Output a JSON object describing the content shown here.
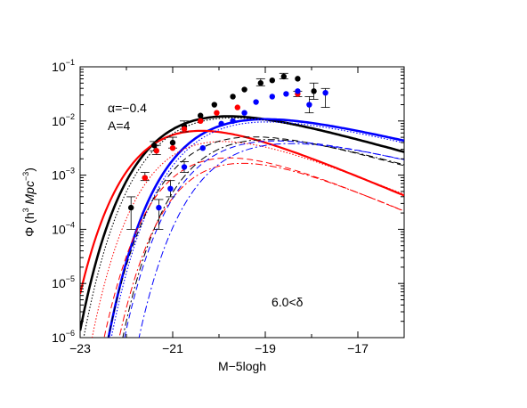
{
  "chart_data": {
    "type": "scatter",
    "xlabel": "M−5logh",
    "ylabel": {
      "main": "Φ (h",
      "sup1": "3",
      "mid": " Mpc",
      "sup2": "−3",
      "end": ")"
    },
    "xlim": [
      -23,
      -16
    ],
    "ylim_log10": [
      -6,
      -1
    ],
    "yscale": "log",
    "x_ticks": [
      -23,
      -21,
      -19,
      -17
    ],
    "x_tick_labels": [
      "−23",
      "−21",
      "−19",
      "−17"
    ],
    "y_ticks": [
      {
        "base": "10",
        "exp": "−6",
        "log": -6
      },
      {
        "base": "10",
        "exp": "−5",
        "log": -5
      },
      {
        "base": "10",
        "exp": "−4",
        "log": -4
      },
      {
        "base": "10",
        "exp": "−3",
        "log": -3
      },
      {
        "base": "10",
        "exp": "−2",
        "log": -2
      },
      {
        "base": "10",
        "exp": "−1",
        "log": -1
      }
    ],
    "annotations": {
      "alpha": "α=−0.4",
      "A": "A=4",
      "delta": "6.0<δ"
    },
    "series": [
      {
        "color": "#000000",
        "points": [
          {
            "x": -21.9,
            "logy": -3.6,
            "lo": -4.0,
            "hi": -3.4
          },
          {
            "x": -21.6,
            "logy": -3.05,
            "lo": -3.1,
            "hi": -2.95
          },
          {
            "x": -21.4,
            "logy": -2.45,
            "lo": -2.55,
            "hi": -2.38
          },
          {
            "x": -21.0,
            "logy": -2.4,
            "lo": -2.5,
            "hi": -2.3
          },
          {
            "x": -20.75,
            "logy": -2.1,
            "lo": -2.2,
            "hi": -2.0
          },
          {
            "x": -20.4,
            "logy": -1.9
          },
          {
            "x": -20.1,
            "logy": -1.7
          },
          {
            "x": -19.7,
            "logy": -1.55
          },
          {
            "x": -19.45,
            "logy": -1.42
          },
          {
            "x": -19.1,
            "logy": -1.3,
            "lo": -1.35,
            "hi": -1.22
          },
          {
            "x": -18.85,
            "logy": -1.25
          },
          {
            "x": -18.6,
            "logy": -1.18,
            "lo": -1.22,
            "hi": -1.12
          },
          {
            "x": -18.3,
            "logy": -1.22
          },
          {
            "x": -17.95,
            "logy": -1.45,
            "lo": -1.6,
            "hi": -1.3
          }
        ]
      },
      {
        "color": "#ff0000",
        "points": [
          {
            "x": -21.6,
            "logy": -3.05
          },
          {
            "x": -21.35,
            "logy": -2.55,
            "lo": -2.62,
            "hi": -2.45
          },
          {
            "x": -21.0,
            "logy": -2.5
          },
          {
            "x": -20.75,
            "logy": -2.15
          },
          {
            "x": -20.4,
            "logy": -2.0
          },
          {
            "x": -20.05,
            "logy": -1.85
          },
          {
            "x": -19.6,
            "logy": -1.75
          },
          {
            "x": -18.3,
            "logy": -1.5,
            "lo": -1.55,
            "hi": -1.45
          }
        ]
      },
      {
        "color": "#0000ff",
        "points": [
          {
            "x": -21.3,
            "logy": -3.6,
            "lo": -4.0,
            "hi": -3.45
          },
          {
            "x": -21.05,
            "logy": -3.25,
            "lo": -3.4,
            "hi": -3.1
          },
          {
            "x": -20.75,
            "logy": -2.85,
            "lo": -2.95,
            "hi": -2.75
          },
          {
            "x": -20.35,
            "logy": -2.5
          },
          {
            "x": -19.95,
            "logy": -2.05
          },
          {
            "x": -19.7,
            "logy": -2.0
          },
          {
            "x": -19.45,
            "logy": -1.85
          },
          {
            "x": -19.2,
            "logy": -1.65
          },
          {
            "x": -18.85,
            "logy": -1.55
          },
          {
            "x": -18.55,
            "logy": -1.5
          },
          {
            "x": -18.3,
            "logy": -1.45
          },
          {
            "x": -18.05,
            "logy": -1.7,
            "lo": -1.85,
            "hi": -1.55
          },
          {
            "x": -17.7,
            "logy": -1.48,
            "lo": -1.75,
            "hi": -1.4
          }
        ]
      }
    ],
    "curves": [
      {
        "color": "#000000",
        "style": "solid",
        "width": 2.6,
        "Mstar": -20.35,
        "logPhiStar": -1.52,
        "alpha": -0.4
      },
      {
        "color": "#0000ff",
        "style": "solid",
        "width": 2.6,
        "Mstar": -20.3,
        "logPhiStar": -1.6,
        "alpha": -0.5,
        "shift": 0.55
      },
      {
        "color": "#ff0000",
        "style": "solid",
        "width": 2.2,
        "Mstar": -20.5,
        "logPhiStar": -1.75,
        "alpha": -0.1
      },
      {
        "color": "#000000",
        "style": "dotted",
        "width": 1.1,
        "Mstar": -20.35,
        "logPhiStar": -1.55,
        "alpha": -0.4,
        "shift": 0.1
      },
      {
        "color": "#0000ff",
        "style": "dotted",
        "width": 1.1,
        "Mstar": -20.3,
        "logPhiStar": -1.65,
        "alpha": -0.5,
        "shift": 0.6
      },
      {
        "color": "#ff0000",
        "style": "dotted",
        "width": 1.0,
        "Mstar": -20.3,
        "logPhiStar": -1.95,
        "alpha": -0.15,
        "shift": 0.2
      },
      {
        "color": "#000000",
        "style": "dashed",
        "width": 1.0,
        "Mstar": -19.8,
        "logPhiStar": -1.9,
        "alpha": -0.4
      },
      {
        "color": "#000000",
        "style": "dashdot",
        "width": 1.0,
        "Mstar": -19.7,
        "logPhiStar": -1.95,
        "alpha": -0.4,
        "shift": 0.2
      },
      {
        "color": "#ff0000",
        "style": "dashed",
        "width": 1.0,
        "Mstar": -19.9,
        "logPhiStar": -2.25,
        "alpha": -0.1
      },
      {
        "color": "#ff0000",
        "style": "dashdot",
        "width": 1.0,
        "Mstar": -19.8,
        "logPhiStar": -2.35,
        "alpha": -0.1,
        "shift": 0.2
      },
      {
        "color": "#0000ff",
        "style": "dashed",
        "width": 1.0,
        "Mstar": -19.5,
        "logPhiStar": -2.0,
        "alpha": -0.5
      },
      {
        "color": "#0000ff",
        "style": "dashdot",
        "width": 1.0,
        "Mstar": -19.3,
        "logPhiStar": -2.05,
        "alpha": -0.5,
        "shift": 0.1
      }
    ]
  }
}
